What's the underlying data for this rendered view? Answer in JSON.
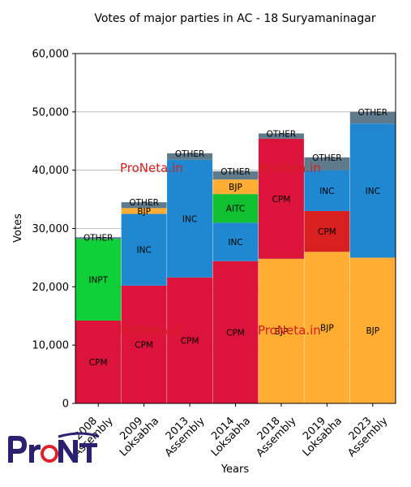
{
  "chart_data": {
    "type": "bar",
    "stacked": true,
    "title": "Votes of major parties in AC - 18 Suryamaninagar",
    "xlabel": "Years",
    "ylabel": "Votes",
    "ylim": [
      0,
      60000
    ],
    "yticks": [
      0,
      10000,
      20000,
      30000,
      40000,
      50000,
      60000
    ],
    "ytick_labels": [
      "0",
      "10,000",
      "20,000",
      "30,000",
      "40,000",
      "50,000",
      "60,000"
    ],
    "grid": "horizontal",
    "categories": [
      [
        "2008",
        "Assembly"
      ],
      [
        "2009",
        "Loksabha"
      ],
      [
        "2013",
        "Assembly"
      ],
      [
        "2014",
        "Loksabha"
      ],
      [
        "2018",
        "Assembly"
      ],
      [
        "2019",
        "Loksabha"
      ],
      [
        "2023",
        "Assembly"
      ]
    ],
    "stacks": [
      [
        {
          "party": "CPM",
          "value": 14200,
          "color": "#dc143c"
        },
        {
          "party": "INPT",
          "value": 14000,
          "color": "#10d03a"
        },
        {
          "party": "OTHER",
          "value": 300,
          "color": "#5f7a8a"
        }
      ],
      [
        {
          "party": "CPM",
          "value": 20200,
          "color": "#dc143c"
        },
        {
          "party": "INC",
          "value": 12300,
          "color": "#1f88d0"
        },
        {
          "party": "BJP",
          "value": 1000,
          "color": "#ffad33"
        },
        {
          "party": "OTHER",
          "value": 1000,
          "color": "#5f7a8a"
        }
      ],
      [
        {
          "party": "CPM",
          "value": 21600,
          "color": "#dc143c"
        },
        {
          "party": "INC",
          "value": 20200,
          "color": "#1f88d0"
        },
        {
          "party": "OTHER",
          "value": 1100,
          "color": "#5f7a8a"
        }
      ],
      [
        {
          "party": "CPM",
          "value": 24400,
          "color": "#dc143c"
        },
        {
          "party": "INC",
          "value": 6600,
          "color": "#1f88d0"
        },
        {
          "party": "AITC",
          "value": 4900,
          "color": "#10c030"
        },
        {
          "party": "BJP",
          "value": 2500,
          "color": "#ffad33"
        },
        {
          "party": "OTHER",
          "value": 1400,
          "color": "#5f7a8a"
        }
      ],
      [
        {
          "party": "BJP",
          "value": 24800,
          "color": "#ffad33"
        },
        {
          "party": "CPM",
          "value": 20600,
          "color": "#dc143c"
        },
        {
          "party": "OTHER",
          "value": 900,
          "color": "#5f7a8a"
        }
      ],
      [
        {
          "party": "BJP",
          "value": 26000,
          "color": "#ffad33"
        },
        {
          "party": "CPM",
          "value": 7000,
          "color": "#d92020"
        },
        {
          "party": "INC",
          "value": 7000,
          "color": "#1f88d0"
        },
        {
          "party": "OTHER",
          "value": 2200,
          "color": "#5f7a8a"
        }
      ],
      [
        {
          "party": "BJP",
          "value": 25000,
          "color": "#ffad33"
        },
        {
          "party": "INC",
          "value": 23000,
          "color": "#1f88d0"
        },
        {
          "party": "OTHER",
          "value": 2000,
          "color": "#5f7a8a"
        }
      ]
    ]
  },
  "watermark": {
    "text": "ProNeta.in",
    "color": "#d42020"
  },
  "logo": {
    "text": "ProNeta",
    "color": "#2a2170",
    "accent": "#e0202a"
  }
}
